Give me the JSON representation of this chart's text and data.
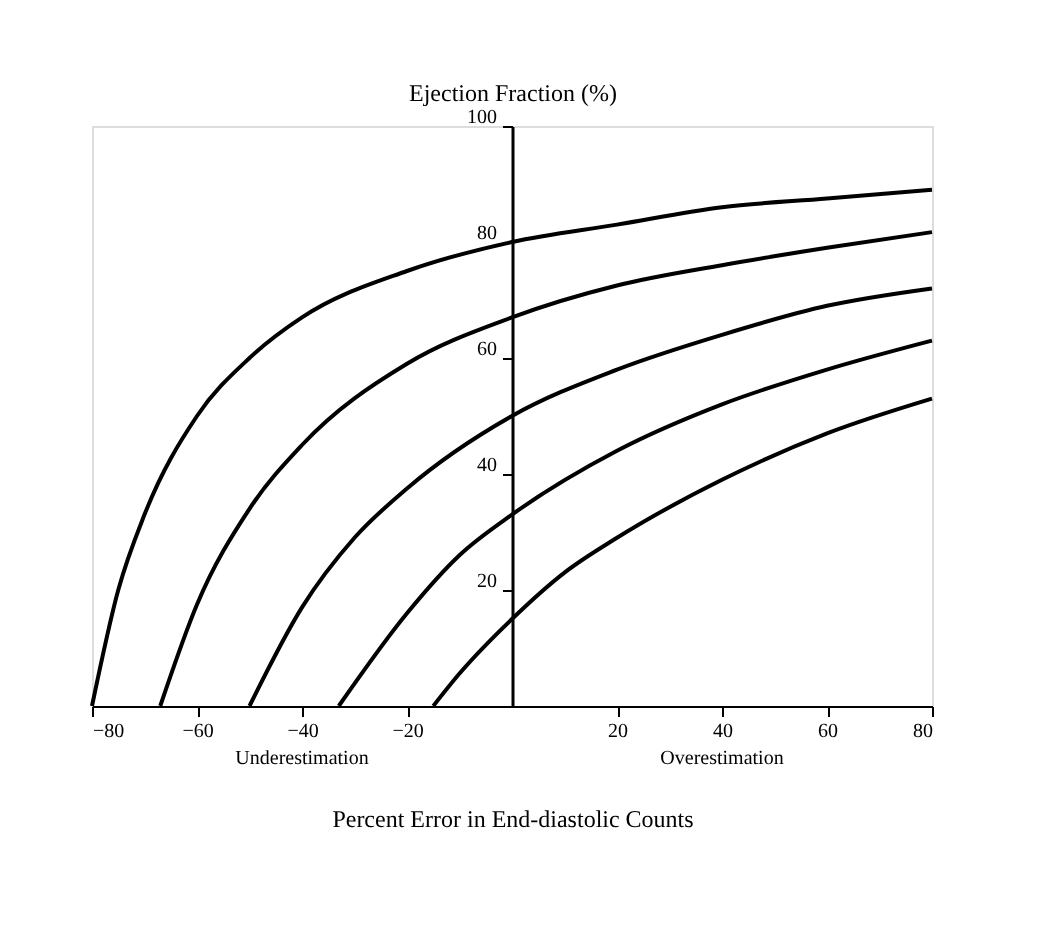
{
  "chart_data": {
    "type": "line",
    "ylabel": "Ejection Fraction (%)",
    "xlabel": "Percent Error in End-diastolic Counts",
    "annotations": [
      "Underestimation",
      "Overestimation"
    ],
    "xlim": [
      -80,
      80
    ],
    "ylim": [
      0,
      100
    ],
    "xticks": [
      -80,
      -60,
      -40,
      -20,
      20,
      40,
      60,
      80
    ],
    "yticks": [
      20,
      40,
      60,
      80,
      100
    ],
    "grid": false,
    "legend": false,
    "marker": "none",
    "line_style": "solid",
    "series": [
      {
        "color": "#000000",
        "x": [
          -80,
          -75,
          -70,
          -60,
          -50,
          -40,
          -20,
          0,
          20,
          40,
          60,
          80
        ],
        "values": [
          0,
          20,
          33,
          50,
          60,
          67,
          75,
          80,
          83,
          86,
          87.5,
          89
        ]
      },
      {
        "color": "#000000",
        "x": [
          -67,
          -60,
          -50,
          -40,
          -20,
          0,
          20,
          40,
          60,
          80
        ],
        "values": [
          0,
          17.5,
          34,
          45,
          59,
          67,
          72.5,
          76,
          79,
          81.7
        ]
      },
      {
        "color": "#000000",
        "x": [
          -50,
          -40,
          -30,
          -20,
          0,
          20,
          40,
          60,
          80
        ],
        "values": [
          0,
          17,
          29,
          37.5,
          50,
          58,
          64,
          69,
          72
        ]
      },
      {
        "color": "#000000",
        "x": [
          -33,
          -20,
          -10,
          0,
          20,
          40,
          60,
          80
        ],
        "values": [
          0,
          16,
          26,
          33,
          44,
          52,
          58,
          63
        ]
      },
      {
        "color": "#000000",
        "x": [
          -15,
          -10,
          0,
          10,
          20,
          40,
          60,
          80
        ],
        "values": [
          0,
          5.6,
          15,
          23,
          29,
          39,
          47,
          53
        ]
      }
    ]
  }
}
